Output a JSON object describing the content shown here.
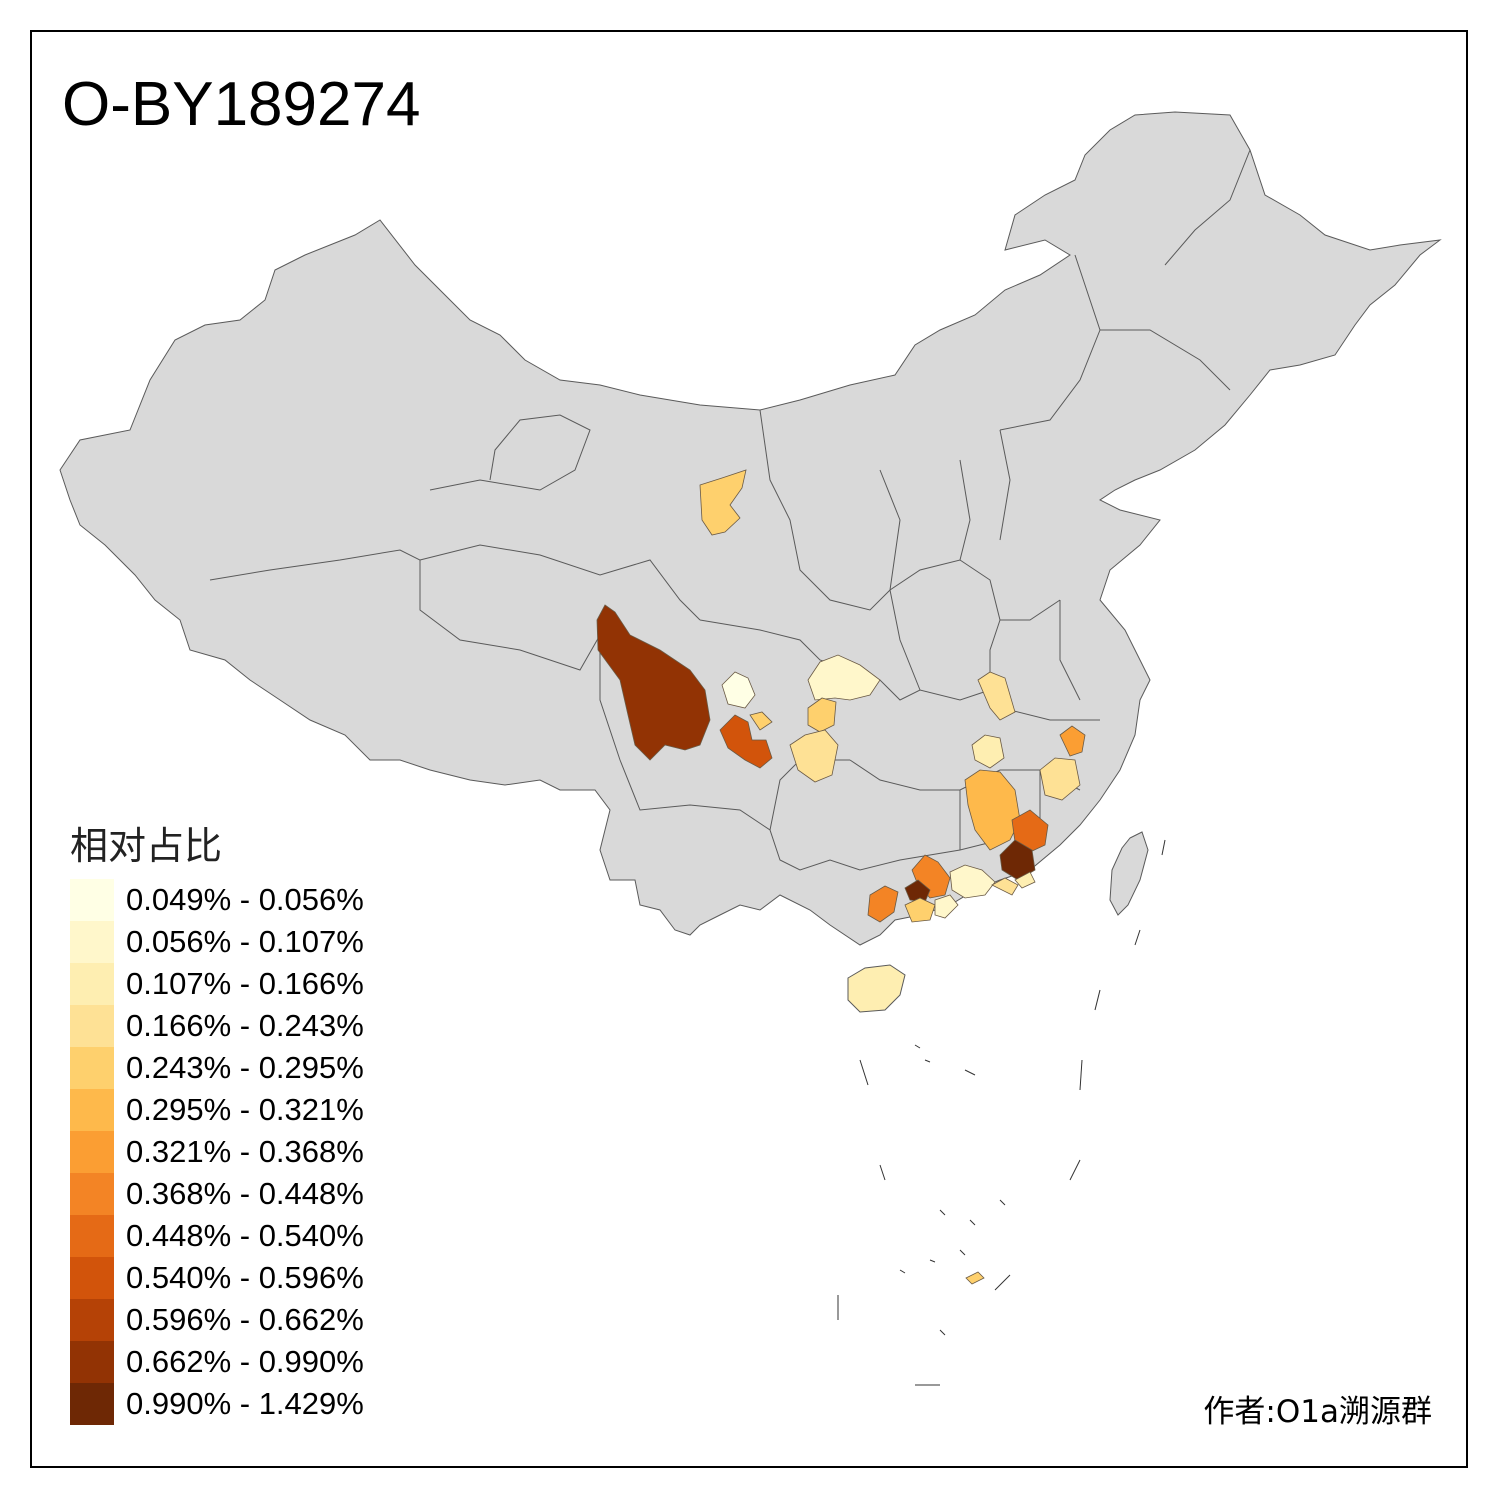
{
  "title": "O-BY189274",
  "legend": {
    "title": "相对占比",
    "items": [
      {
        "label": "0.049% - 0.056%",
        "color": "#FFFFE5"
      },
      {
        "label": "0.056% - 0.107%",
        "color": "#FFF7CB"
      },
      {
        "label": "0.107% - 0.166%",
        "color": "#FEEEB1"
      },
      {
        "label": "0.166% - 0.243%",
        "color": "#FEE195"
      },
      {
        "label": "0.243% - 0.295%",
        "color": "#FED06D"
      },
      {
        "label": "0.295% - 0.321%",
        "color": "#FEB94B"
      },
      {
        "label": "0.321% - 0.368%",
        "color": "#FB9E33"
      },
      {
        "label": "0.368% - 0.448%",
        "color": "#F38425"
      },
      {
        "label": "0.448% - 0.540%",
        "color": "#E56A16"
      },
      {
        "label": "0.540% - 0.596%",
        "color": "#D2540B"
      },
      {
        "label": "0.596% - 0.662%",
        "color": "#B54206"
      },
      {
        "label": "0.662% - 0.990%",
        "color": "#923304"
      },
      {
        "label": "0.990% - 1.429%",
        "color": "#6E2805"
      }
    ]
  },
  "credit": "作者:O1a溯源群",
  "map_colors": {
    "base": "#D9D9D9",
    "border": "#5A5A5A"
  }
}
